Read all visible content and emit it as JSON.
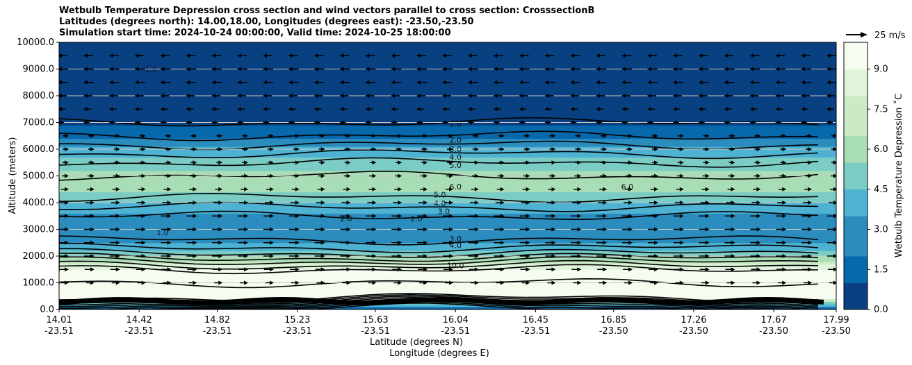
{
  "titles": [
    "Wetbulb Temperature Depression cross section and wind vectors parallel to cross section: CrosssectionB",
    "Latitudes (degrees north): 14.00,18.00, Longitudes (degrees east): -23.50,-23.50",
    "Simulation start time: 2024-10-24 00:00:00, Valid time: 2024-10-25 18:00:00"
  ],
  "chart_data": {
    "type": "contour",
    "title": "Wetbulb Temperature Depression cross section and wind vectors parallel to cross section: CrosssectionB",
    "ylabel": "Altitude (meters)",
    "xlabel_lat": "Latitude (degrees N)",
    "xlabel_lon": "Longitude (degrees E)",
    "ylim": [
      0,
      10000
    ],
    "yticks": [
      "0.0",
      "1000.0",
      "2000.0",
      "3000.0",
      "4000.0",
      "5000.0",
      "6000.0",
      "7000.0",
      "8000.0",
      "9000.0",
      "10000.0"
    ],
    "xticks": [
      {
        "lat": "14.01",
        "lon": "-23.51"
      },
      {
        "lat": "14.42",
        "lon": "-23.51"
      },
      {
        "lat": "14.82",
        "lon": "-23.51"
      },
      {
        "lat": "15.23",
        "lon": "-23.51"
      },
      {
        "lat": "15.63",
        "lon": "-23.51"
      },
      {
        "lat": "16.04",
        "lon": "-23.51"
      },
      {
        "lat": "16.45",
        "lon": "-23.51"
      },
      {
        "lat": "16.85",
        "lon": "-23.50"
      },
      {
        "lat": "17.26",
        "lon": "-23.50"
      },
      {
        "lat": "17.67",
        "lon": "-23.50"
      },
      {
        "lat": "17.99",
        "lon": "-23.50"
      }
    ],
    "colorbar": {
      "label": "Wetbulb Temperature Depression ˚C",
      "ticks": [
        "0.0",
        "1.5",
        "3.0",
        "4.5",
        "6.0",
        "7.5",
        "9.0"
      ],
      "min": 0,
      "max": 10,
      "colors": [
        "#084081",
        "#0868ac",
        "#2b8cbe",
        "#4eb3d3",
        "#7bccc4",
        "#a8ddb5",
        "#ccebc5",
        "#e0f3db",
        "#f7fcf0"
      ]
    },
    "wind_key": "25 m/s",
    "profile": [
      {
        "alt": 0,
        "value": 1.0
      },
      {
        "alt": 500,
        "value": 10.0
      },
      {
        "alt": 1000,
        "value": 10.0
      },
      {
        "alt": 1500,
        "value": 9.0
      },
      {
        "alt": 1800,
        "value": 7.0
      },
      {
        "alt": 2000,
        "value": 5.5
      },
      {
        "alt": 2300,
        "value": 4.0
      },
      {
        "alt": 2600,
        "value": 3.0
      },
      {
        "alt": 3000,
        "value": 2.2
      },
      {
        "alt": 3500,
        "value": 3.0
      },
      {
        "alt": 4000,
        "value": 4.5
      },
      {
        "alt": 4500,
        "value": 5.8
      },
      {
        "alt": 5000,
        "value": 6.0
      },
      {
        "alt": 5500,
        "value": 5.0
      },
      {
        "alt": 6000,
        "value": 3.5
      },
      {
        "alt": 6500,
        "value": 2.0
      },
      {
        "alt": 7000,
        "value": 1.0
      },
      {
        "alt": 8000,
        "value": 0.6
      },
      {
        "alt": 9000,
        "value": 0.5
      },
      {
        "alt": 10000,
        "value": 0.5
      }
    ],
    "contour_labels": [
      {
        "text": "1.0",
        "lat": 16.04,
        "alt": 6950
      },
      {
        "text": "2.0",
        "lat": 16.04,
        "alt": 6350
      },
      {
        "text": "3.0",
        "lat": 16.04,
        "alt": 6000
      },
      {
        "text": "4.0",
        "lat": 16.04,
        "alt": 5700
      },
      {
        "text": "5.0",
        "lat": 16.04,
        "alt": 5400
      },
      {
        "text": "6.0",
        "lat": 16.04,
        "alt": 4600
      },
      {
        "text": "5.0",
        "lat": 15.96,
        "alt": 4300
      },
      {
        "text": "4.0",
        "lat": 15.96,
        "alt": 3980
      },
      {
        "text": "3.0",
        "lat": 15.98,
        "alt": 3670
      },
      {
        "text": "3.0",
        "lat": 16.04,
        "alt": 2650
      },
      {
        "text": "4.0",
        "lat": 16.04,
        "alt": 2400
      },
      {
        "text": "10.0",
        "lat": 16.04,
        "alt": 1650
      },
      {
        "text": "1.0",
        "lat": 14.48,
        "alt": 9000
      },
      {
        "text": "2.0",
        "lat": 15.48,
        "alt": 3400
      },
      {
        "text": "2.0",
        "lat": 15.84,
        "alt": 3400
      },
      {
        "text": "1.0",
        "lat": 14.54,
        "alt": 2900
      },
      {
        "text": "6.0",
        "lat": 16.92,
        "alt": 4600
      }
    ],
    "wind_levels": [
      {
        "alt": 9500,
        "dir": -1,
        "speed": 6
      },
      {
        "alt": 9000,
        "dir": -1,
        "speed": 7
      },
      {
        "alt": 8500,
        "dir": -1,
        "speed": 7
      },
      {
        "alt": 8000,
        "dir": -1,
        "speed": 5
      },
      {
        "alt": 7500,
        "dir": -1,
        "speed": 3
      },
      {
        "alt": 7000,
        "dir": -1,
        "speed": 1
      },
      {
        "alt": 6500,
        "dir": 1,
        "speed": 1
      },
      {
        "alt": 6000,
        "dir": 1,
        "speed": 1
      },
      {
        "alt": 5500,
        "dir": 1,
        "speed": 1
      },
      {
        "alt": 5000,
        "dir": 1,
        "speed": 2
      },
      {
        "alt": 4500,
        "dir": 1,
        "speed": 3
      },
      {
        "alt": 4000,
        "dir": 1,
        "speed": 5
      },
      {
        "alt": 3500,
        "dir": 1,
        "speed": 7
      },
      {
        "alt": 3000,
        "dir": 1,
        "speed": 7
      },
      {
        "alt": 2500,
        "dir": 1,
        "speed": 7
      },
      {
        "alt": 2000,
        "dir": 1,
        "speed": 7
      },
      {
        "alt": 1500,
        "dir": 1,
        "speed": 6
      },
      {
        "alt": 1000,
        "dir": 1,
        "speed": 4
      }
    ]
  }
}
